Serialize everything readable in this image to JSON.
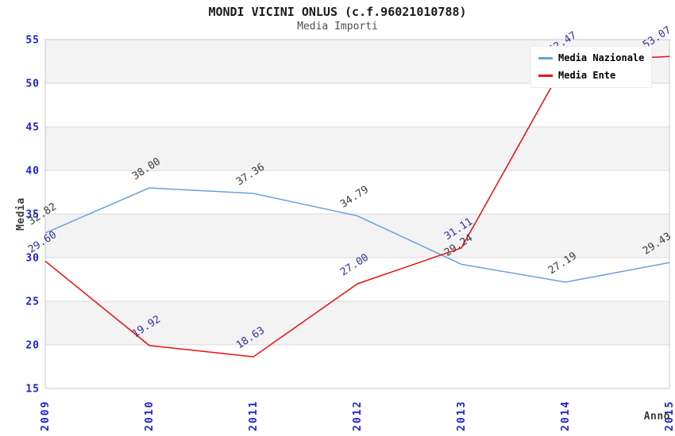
{
  "header": {
    "title": "MONDI VICINI ONLUS (c.f.96021010788)",
    "subtitle": "Media Importi"
  },
  "chart_data": {
    "type": "line",
    "title": "MONDI VICINI ONLUS (c.f.96021010788)",
    "subtitle": "Media Importi",
    "xlabel": "Anno",
    "ylabel": "Media",
    "x": [
      "2009",
      "2010",
      "2011",
      "2012",
      "2013",
      "2014",
      "2015"
    ],
    "ylim": [
      15,
      55
    ],
    "yticks": [
      15,
      20,
      25,
      30,
      35,
      40,
      45,
      50,
      55
    ],
    "grid": "horizontal-only",
    "background_bands": {
      "colors": [
        "#f3f3f3",
        "#ffffff"
      ],
      "note": "alternating 5-unit horizontal bands, gray band at top (50-55)"
    },
    "legend_position": "top-right",
    "tick_color": "#1f1fce",
    "axis_title_color": "#3c3c3c",
    "grid_color": "#d8d8d8",
    "border_color": "#c8c8c8",
    "series": [
      {
        "name": "Media Nazionale",
        "color": "#69a1dd",
        "label_color": "#3c3c3c",
        "values": [
          32.82,
          38.0,
          37.36,
          34.79,
          29.24,
          27.19,
          29.43
        ],
        "labels": [
          "32.82",
          "38.00",
          "37.36",
          "34.79",
          "29.24",
          "27.19",
          "29.43"
        ]
      },
      {
        "name": "Media Ente",
        "color": "#ee0c0c",
        "label_color": "#32329e",
        "values": [
          29.6,
          19.92,
          18.63,
          27.0,
          31.11,
          52.47,
          53.07
        ],
        "labels": [
          "29.60",
          "19.92",
          "18.63",
          "27.00",
          "31.11",
          "52.47",
          "53.07"
        ],
        "label_notes": {
          "5": "2014 value label mostly occluded by legend box; only tip of last digit 7 visible; value estimated from line position"
        }
      }
    ]
  },
  "legend": {
    "items": [
      {
        "label": "Media Nazionale",
        "color": "#69a1dd"
      },
      {
        "label": "Media Ente",
        "color": "#ee0c0c"
      }
    ]
  }
}
